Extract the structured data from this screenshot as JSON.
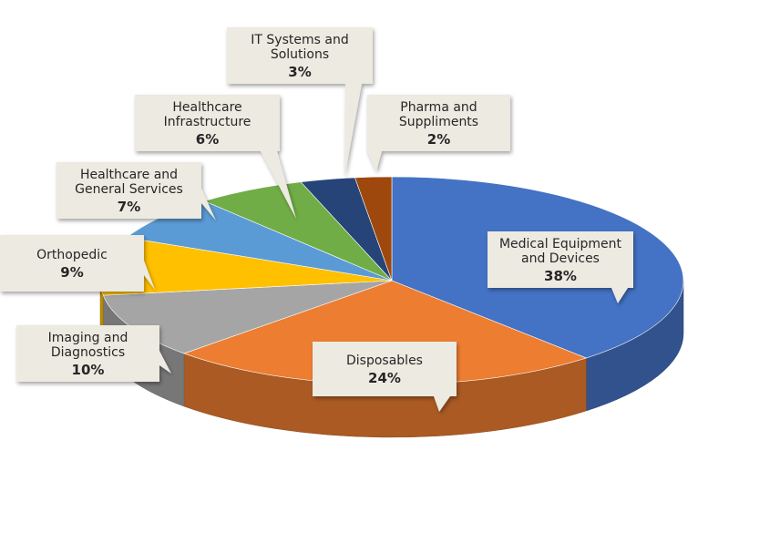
{
  "chart_data": {
    "type": "pie",
    "style": "3d",
    "title": "",
    "start_angle_deg": 0,
    "direction": "clockwise",
    "slices": [
      {
        "label_lines": [
          "Medical Equipment",
          "and Devices"
        ],
        "value": 38,
        "value_label": "38%",
        "color": "#4472C4"
      },
      {
        "label_lines": [
          "Disposables"
        ],
        "value": 24,
        "value_label": "24%",
        "color": "#ED7D31"
      },
      {
        "label_lines": [
          "Imaging and",
          "Diagnostics"
        ],
        "value": 10,
        "value_label": "10%",
        "color": "#A5A5A5"
      },
      {
        "label_lines": [
          "Orthopedic"
        ],
        "value": 9,
        "value_label": "9%",
        "color": "#FFC000"
      },
      {
        "label_lines": [
          "Healthcare and",
          "General Services"
        ],
        "value": 7,
        "value_label": "7%",
        "color": "#5B9BD5"
      },
      {
        "label_lines": [
          "Healthcare",
          "Infrastructure"
        ],
        "value": 6,
        "value_label": "6%",
        "color": "#70AD47"
      },
      {
        "label_lines": [
          "IT Systems and",
          "Solutions"
        ],
        "value": 3,
        "value_label": "3%",
        "color": "#264478"
      },
      {
        "label_lines": [
          "Pharma and",
          "Suppliments"
        ],
        "value": 2,
        "value_label": "2%",
        "color": "#9E480E"
      }
    ],
    "legend": "none",
    "callout_fill": "#ECEAE1"
  }
}
